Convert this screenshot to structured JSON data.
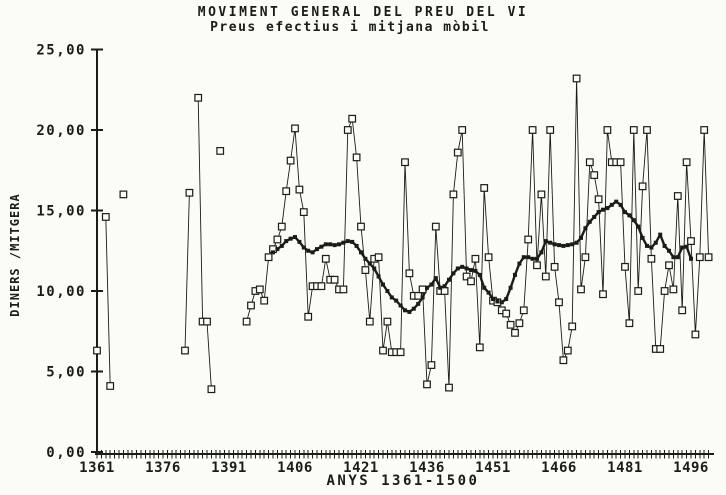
{
  "figure": {
    "title": "MOVIMENT GENERAL DEL PREU DEL VI",
    "subtitle": "Preus efectius i mitjana mòbil",
    "x_axis_label": "ANYS 1361-1500",
    "y_axis_label": "DINERS /MITGERA"
  },
  "chart_data": {
    "type": "line",
    "title": "MOVIMENT GENERAL DEL PREU DEL VI",
    "subtitle": "Preus efectius i mitjana mòbil",
    "xlabel": "ANYS 1361-1500",
    "ylabel": "DINERS /MITGERA",
    "x_start_year": 1361,
    "x_end_year": 1500,
    "ylim": [
      0,
      25
    ],
    "grid": false,
    "legend": "none",
    "ink_color": "#1b1b18",
    "background_color": "#fbfbf8",
    "yticks": [
      {
        "value": 0,
        "label": "0,00"
      },
      {
        "value": 5,
        "label": "5,00"
      },
      {
        "value": 10,
        "label": "10,00"
      },
      {
        "value": 15,
        "label": "15,00"
      },
      {
        "value": 20,
        "label": "20,00"
      },
      {
        "value": 25,
        "label": "25,00"
      }
    ],
    "xticks": [
      {
        "year": 1361,
        "label": "1361"
      },
      {
        "year": 1376,
        "label": "1376"
      },
      {
        "year": 1391,
        "label": "1391"
      },
      {
        "year": 1406,
        "label": "1406"
      },
      {
        "year": 1421,
        "label": "1421"
      },
      {
        "year": 1436,
        "label": "1436"
      },
      {
        "year": 1451,
        "label": "1451"
      },
      {
        "year": 1466,
        "label": "1466"
      },
      {
        "year": 1481,
        "label": "1481"
      },
      {
        "year": 1496,
        "label": "1496"
      }
    ],
    "series": [
      {
        "name": "Preus efectius",
        "style": "thin-line-open-square-markers",
        "points": {
          "1361": 6.3,
          "1363": 14.6,
          "1364": 4.1,
          "1367": 16.0,
          "1381": 6.3,
          "1382": 16.1,
          "1384": 22.0,
          "1385": 8.1,
          "1386": 8.1,
          "1387": 3.9,
          "1389": 18.7,
          "1395": 8.1,
          "1396": 9.1,
          "1397": 10.0,
          "1398": 10.1,
          "1399": 9.4,
          "1400": 12.1,
          "1401": 12.6,
          "1402": 13.2,
          "1403": 14.0,
          "1404": 16.2,
          "1405": 18.1,
          "1406": 20.1,
          "1407": 16.3,
          "1408": 14.9,
          "1409": 8.4,
          "1410": 10.3,
          "1411": 10.3,
          "1412": 10.3,
          "1413": 12.0,
          "1414": 10.7,
          "1415": 10.7,
          "1416": 10.1,
          "1417": 10.1,
          "1418": 20.0,
          "1419": 20.7,
          "1420": 18.3,
          "1421": 14.0,
          "1422": 11.3,
          "1423": 8.1,
          "1424": 12.0,
          "1425": 12.1,
          "1426": 6.3,
          "1427": 8.1,
          "1428": 6.2,
          "1429": 6.2,
          "1430": 6.2,
          "1431": 18.0,
          "1432": 11.1,
          "1433": 9.7,
          "1434": 9.7,
          "1435": 10.1,
          "1436": 4.2,
          "1437": 5.4,
          "1438": 14.0,
          "1439": 10.0,
          "1440": 10.0,
          "1441": 4.0,
          "1442": 16.0,
          "1443": 18.6,
          "1444": 20.0,
          "1445": 10.9,
          "1446": 10.6,
          "1447": 12.0,
          "1448": 6.5,
          "1449": 16.4,
          "1450": 12.1,
          "1451": 9.4,
          "1452": 9.3,
          "1453": 8.8,
          "1454": 8.6,
          "1455": 7.9,
          "1456": 7.4,
          "1457": 8.0,
          "1458": 8.8,
          "1459": 13.2,
          "1460": 20.0,
          "1461": 11.6,
          "1462": 16.0,
          "1463": 10.9,
          "1464": 20.0,
          "1465": 11.5,
          "1466": 9.3,
          "1467": 5.7,
          "1468": 6.3,
          "1469": 7.8,
          "1470": 23.2,
          "1471": 10.1,
          "1472": 12.1,
          "1473": 18.0,
          "1474": 17.2,
          "1475": 15.7,
          "1476": 9.8,
          "1477": 20.0,
          "1478": 18.0,
          "1479": 18.0,
          "1480": 18.0,
          "1481": 11.5,
          "1482": 8.0,
          "1483": 20.0,
          "1484": 10.0,
          "1485": 16.5,
          "1486": 20.0,
          "1487": 12.0,
          "1488": 6.4,
          "1489": 6.4,
          "1490": 10.0,
          "1491": 11.6,
          "1492": 10.1,
          "1493": 15.9,
          "1494": 8.8,
          "1495": 18.0,
          "1496": 13.1,
          "1497": 7.3,
          "1498": 12.1,
          "1499": 20.0,
          "1500": 12.1
        }
      },
      {
        "name": "Mitjana mòbil",
        "style": "thick-line-filled-square-markers",
        "points": {
          "1401": 12.4,
          "1402": 12.6,
          "1403": 12.8,
          "1404": 13.1,
          "1405": 13.25,
          "1406": 13.35,
          "1407": 13.05,
          "1408": 12.7,
          "1409": 12.5,
          "1410": 12.4,
          "1411": 12.6,
          "1412": 12.75,
          "1413": 12.9,
          "1414": 12.9,
          "1415": 12.85,
          "1416": 12.9,
          "1417": 13.0,
          "1418": 13.1,
          "1419": 13.05,
          "1420": 12.8,
          "1421": 12.4,
          "1422": 12.0,
          "1423": 11.7,
          "1424": 11.4,
          "1425": 10.9,
          "1426": 10.4,
          "1427": 10.0,
          "1428": 9.6,
          "1429": 9.4,
          "1430": 9.1,
          "1431": 8.8,
          "1432": 8.7,
          "1433": 8.9,
          "1434": 9.2,
          "1435": 9.6,
          "1436": 10.2,
          "1437": 10.4,
          "1438": 10.8,
          "1439": 10.2,
          "1440": 10.3,
          "1441": 10.7,
          "1442": 11.1,
          "1443": 11.4,
          "1444": 11.5,
          "1445": 11.4,
          "1446": 11.3,
          "1447": 11.25,
          "1448": 11.0,
          "1449": 10.2,
          "1450": 9.9,
          "1451": 9.5,
          "1452": 9.35,
          "1453": 9.3,
          "1454": 9.5,
          "1455": 10.2,
          "1456": 11.0,
          "1457": 11.7,
          "1458": 12.1,
          "1459": 12.1,
          "1460": 12.0,
          "1461": 12.0,
          "1462": 12.4,
          "1463": 13.1,
          "1464": 13.0,
          "1465": 12.9,
          "1466": 12.85,
          "1467": 12.8,
          "1468": 12.85,
          "1469": 12.9,
          "1470": 13.0,
          "1471": 13.3,
          "1472": 13.9,
          "1473": 14.3,
          "1474": 14.6,
          "1475": 14.9,
          "1476": 15.05,
          "1477": 15.15,
          "1478": 15.35,
          "1479": 15.55,
          "1480": 15.35,
          "1481": 14.9,
          "1482": 14.7,
          "1483": 14.4,
          "1484": 14.0,
          "1485": 13.3,
          "1486": 12.8,
          "1487": 12.7,
          "1488": 13.0,
          "1489": 13.5,
          "1490": 12.8,
          "1491": 12.5,
          "1492": 12.1,
          "1493": 12.1,
          "1494": 12.7,
          "1495": 12.75,
          "1496": 12.0
        }
      }
    ]
  }
}
